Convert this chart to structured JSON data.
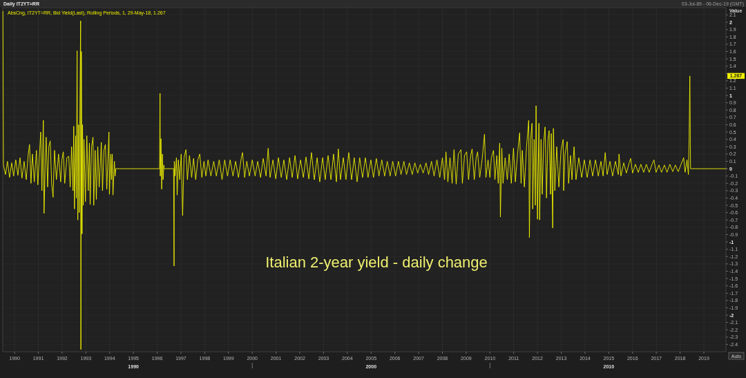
{
  "chart_data": {
    "type": "line",
    "title": "Italian 2-year yield - daily change",
    "subtitle": "Daily IT2YT=RR",
    "ylabel": "Value",
    "annotations": [
      {
        "text": "1.267",
        "y": 1.267
      },
      "03-Jul-89 - 06-Dec-19 (GMT)",
      "Auto"
    ],
    "legend": "top left",
    "grid": true,
    "xlim": [
      1989.503,
      2019.93
    ],
    "ylim": [
      -2.5,
      2.2
    ],
    "xticks": [
      1990,
      1991,
      1992,
      1993,
      1994,
      1995,
      1996,
      1997,
      1998,
      1999,
      2000,
      2001,
      2002,
      2003,
      2004,
      2005,
      2006,
      2007,
      2008,
      2009,
      2010,
      2011,
      2012,
      2013,
      2014,
      2015,
      2016,
      2017,
      2018,
      2019
    ],
    "x2lim": [
      1984.503,
      2014.93
    ],
    "x2ticks": [
      1990,
      {
        "value": 1995,
        "label": null
      },
      2000,
      {
        "value": 2005,
        "label": null
      },
      2010
    ],
    "yticks": [
      -2.4,
      -2.3,
      -2.2,
      -2.1,
      -2,
      -1.9,
      -1.8,
      -1.7,
      -1.6,
      -1.5,
      -1.4,
      -1.3,
      -1.2,
      -1.1,
      -1,
      -0.9,
      -0.8,
      -0.7,
      -0.6,
      -0.5,
      -0.4,
      -0.3,
      -0.2,
      -0.1,
      0,
      0.1,
      0.2,
      0.3,
      0.4,
      0.5,
      0.6,
      0.7,
      0.8,
      0.9,
      1,
      1.1,
      1.2,
      {
        "value": 1.3,
        "label": null
      },
      1.4,
      1.5,
      1.6,
      1.7,
      1.8,
      1.9,
      2,
      2.1
    ],
    "series": [
      {
        "name": "AbsCng, IT2YT=RR, Bid Yield(Last), Rolling Periods, 1, 29-May-18, 1.267",
        "color": "#f0f000",
        "x": [
          1989.51,
          1989.53,
          1989.62,
          1989.7,
          1989.79,
          1989.88,
          1989.96,
          1990.05,
          1990.14,
          1990.23,
          1990.31,
          1990.4,
          1990.49,
          1990.57,
          1990.63,
          1990.69,
          1990.75,
          1990.83,
          1990.92,
          1990.98,
          1991.04,
          1991.1,
          1991.15,
          1991.21,
          1991.24,
          1991.3,
          1991.33,
          1991.39,
          1991.44,
          1991.5,
          1991.56,
          1991.62,
          1991.68,
          1991.76,
          1991.85,
          1991.94,
          1991.99,
          1992.05,
          1992.11,
          1992.2,
          1992.28,
          1992.34,
          1992.4,
          1992.46,
          1992.49,
          1992.52,
          1992.57,
          1992.6,
          1992.63,
          1992.66,
          1992.69,
          1992.72,
          1992.75,
          1992.78,
          1992.79,
          1992.81,
          1992.84,
          1992.86,
          1992.89,
          1992.92,
          1992.98,
          1993.04,
          1993.1,
          1993.15,
          1993.18,
          1993.24,
          1993.3,
          1993.33,
          1993.39,
          1993.44,
          1993.5,
          1993.56,
          1993.65,
          1993.7,
          1993.76,
          1993.82,
          1993.88,
          1993.97,
          1993.99,
          1994.05,
          1994.08,
          1994.11,
          1994.14,
          1994.2,
          1994.23,
          1994.26,
          1996.1,
          1996.12,
          1996.13,
          1996.16,
          1996.19,
          1996.22,
          1996.25,
          1996.28,
          1996.29,
          1996.69,
          1996.71,
          1996.72,
          1996.75,
          1996.81,
          1996.84,
          1996.89,
          1996.95,
          1997.01,
          1997.07,
          1997.13,
          1997.21,
          1997.27,
          1997.36,
          1997.45,
          1997.53,
          1997.62,
          1997.71,
          1997.79,
          1997.88,
          1997.97,
          1998.05,
          1998.14,
          1998.26,
          1998.38,
          1998.49,
          1998.61,
          1998.73,
          1998.84,
          1998.96,
          1999.07,
          1999.19,
          1999.3,
          1999.42,
          1999.54,
          1999.59,
          1999.68,
          1999.77,
          1999.88,
          2000.0,
          2000.12,
          2000.23,
          2000.35,
          2000.46,
          2000.58,
          2000.67,
          2000.75,
          2000.87,
          2000.99,
          2001.1,
          2001.22,
          2001.33,
          2001.45,
          2001.57,
          2001.68,
          2001.8,
          2001.91,
          2002.03,
          2002.15,
          2002.26,
          2002.38,
          2002.49,
          2002.61,
          2002.73,
          2002.84,
          2002.96,
          2003.07,
          2003.19,
          2003.31,
          2003.42,
          2003.54,
          2003.62,
          2003.71,
          2003.83,
          2003.94,
          2004.06,
          2004.18,
          2004.29,
          2004.41,
          2004.52,
          2004.64,
          2004.76,
          2004.87,
          2004.99,
          2005.1,
          2005.22,
          2005.33,
          2005.45,
          2005.57,
          2005.68,
          2005.8,
          2005.91,
          2006.03,
          2006.15,
          2006.26,
          2006.38,
          2006.49,
          2006.61,
          2006.73,
          2006.84,
          2006.96,
          2007.07,
          2007.19,
          2007.31,
          2007.42,
          2007.54,
          2007.65,
          2007.77,
          2007.89,
          2008.0,
          2008.09,
          2008.15,
          2008.23,
          2008.32,
          2008.41,
          2008.49,
          2008.58,
          2008.67,
          2008.78,
          2008.84,
          2008.93,
          2009.02,
          2009.1,
          2009.19,
          2009.25,
          2009.34,
          2009.42,
          2009.48,
          2009.57,
          2009.68,
          2009.77,
          2009.83,
          2009.92,
          2010.0,
          2010.06,
          2010.15,
          2010.21,
          2010.29,
          2010.35,
          2010.41,
          2010.44,
          2010.5,
          2010.55,
          2010.64,
          2010.73,
          2010.81,
          2010.9,
          2010.99,
          2011.07,
          2011.16,
          2011.25,
          2011.31,
          2011.36,
          2011.45,
          2011.54,
          2011.63,
          2011.66,
          2011.71,
          2011.77,
          2011.8,
          2011.86,
          2011.91,
          2011.94,
          2012.0,
          2012.06,
          2012.09,
          2012.15,
          2012.2,
          2012.26,
          2012.32,
          2012.38,
          2012.44,
          2012.49,
          2012.55,
          2012.58,
          2012.64,
          2012.67,
          2012.73,
          2012.81,
          2012.9,
          2012.99,
          2013.08,
          2013.1,
          2013.16,
          2013.25,
          2013.31,
          2013.39,
          2013.45,
          2013.54,
          2013.62,
          2013.74,
          2013.86,
          2013.97,
          2014.09,
          2014.21,
          2014.32,
          2014.44,
          2014.56,
          2014.67,
          2014.76,
          2014.85,
          2014.93,
          2015.05,
          2015.16,
          2015.28,
          2015.4,
          2015.43,
          2015.51,
          2015.63,
          2015.74,
          2015.86,
          2015.92,
          2016.0,
          2016.12,
          2016.24,
          2016.35,
          2016.47,
          2016.58,
          2016.7,
          2016.82,
          2016.9,
          2016.99,
          2017.11,
          2017.22,
          2017.34,
          2017.45,
          2017.57,
          2017.69,
          2017.8,
          2017.92,
          2018.03,
          2018.15,
          2018.21,
          2018.29,
          2018.35,
          2018.38,
          2018.41,
          2018.44,
          2019.93
        ],
        "values": [
          2.15,
          0.05,
          -0.08,
          0.1,
          -0.12,
          0.08,
          -0.1,
          0.12,
          -0.09,
          0.15,
          -0.13,
          0.1,
          -0.15,
          0.18,
          0.33,
          -0.2,
          0.2,
          -0.18,
          0.25,
          -0.22,
          0.15,
          0.5,
          -0.3,
          0.66,
          -0.61,
          0.2,
          0.43,
          -0.25,
          0.3,
          0.38,
          -0.2,
          -0.39,
          0.25,
          -0.15,
          0.2,
          -0.18,
          0.12,
          0.23,
          -0.2,
          0.15,
          0.17,
          -0.25,
          0.3,
          -0.3,
          0.58,
          -0.55,
          0.45,
          -0.4,
          1.61,
          -0.7,
          0.6,
          -0.6,
          0.9,
          2.02,
          -2.47,
          1.6,
          -0.89,
          0.6,
          -0.5,
          0.4,
          -0.45,
          0.45,
          -0.3,
          0.35,
          -0.49,
          0.3,
          0.43,
          -0.5,
          0.25,
          -0.42,
          0.3,
          -0.25,
          0.36,
          -0.3,
          0.25,
          0.33,
          -0.28,
          0.5,
          -0.35,
          0.2,
          -0.15,
          0.2,
          -0.36,
          0.1,
          -0.1,
          0,
          0,
          1.03,
          -0.1,
          0.41,
          -0.28,
          0.2,
          -0.15,
          0.05,
          0,
          0,
          -1.33,
          0.1,
          -0.1,
          0.15,
          -0.36,
          0.12,
          -0.15,
          0.2,
          -0.64,
          0.15,
          0.26,
          -0.15,
          0.18,
          -0.12,
          0.14,
          -0.15,
          0.12,
          0.2,
          -0.12,
          0.1,
          -0.1,
          0.12,
          -0.1,
          0.1,
          -0.1,
          0.12,
          -0.15,
          0.12,
          -0.1,
          0.12,
          -0.1,
          0.1,
          -0.12,
          0.15,
          0.22,
          -0.12,
          0.1,
          -0.1,
          0.12,
          -0.1,
          0.1,
          -0.12,
          0.14,
          -0.1,
          0.28,
          -0.12,
          0.12,
          -0.14,
          0.15,
          -0.12,
          0.12,
          -0.15,
          0.15,
          -0.12,
          0.18,
          -0.14,
          0.12,
          -0.12,
          0.16,
          -0.14,
          0.22,
          -0.15,
          0.15,
          -0.18,
          0.15,
          -0.15,
          0.18,
          -0.15,
          0.2,
          -0.18,
          0.27,
          -0.15,
          0.15,
          -0.15,
          0.22,
          -0.15,
          0.15,
          -0.18,
          0.15,
          -0.12,
          0.15,
          -0.12,
          0.12,
          -0.12,
          0.14,
          -0.1,
          0.12,
          -0.1,
          0.1,
          -0.1,
          0.1,
          -0.1,
          0.1,
          -0.08,
          0.1,
          -0.08,
          0.08,
          -0.08,
          0.08,
          -0.06,
          0.06,
          -0.06,
          0.08,
          -0.08,
          0.1,
          -0.1,
          0.12,
          -0.12,
          0.15,
          -0.15,
          0.23,
          -0.18,
          0.15,
          -0.2,
          0.26,
          -0.21,
          0.2,
          0.26,
          -0.2,
          0.18,
          0.23,
          -0.15,
          0.18,
          0.27,
          -0.15,
          0.15,
          0.23,
          -0.12,
          0.15,
          0.47,
          -0.12,
          0.12,
          -0.12,
          0.15,
          0.25,
          -0.15,
          0.18,
          -0.2,
          0.35,
          -0.66,
          0.28,
          -0.2,
          0.15,
          -0.15,
          0.2,
          -0.2,
          0.28,
          -0.18,
          0.2,
          0.49,
          -0.2,
          0.25,
          -0.25,
          0.3,
          0.66,
          -0.94,
          0.4,
          0.62,
          -0.55,
          0.4,
          -0.5,
          0.86,
          -0.69,
          0.62,
          -0.7,
          0.4,
          -0.35,
          0.35,
          0.57,
          -0.4,
          0.4,
          0.52,
          -0.35,
          0.48,
          -0.81,
          0.55,
          -0.3,
          0.3,
          -0.25,
          0.25,
          0.4,
          -0.3,
          0.2,
          0.37,
          -0.2,
          0.18,
          -0.15,
          0.3,
          -0.15,
          0.15,
          -0.12,
          0.12,
          -0.12,
          0.12,
          -0.1,
          0.12,
          -0.1,
          0.1,
          -0.1,
          0.22,
          -0.08,
          0.1,
          -0.1,
          0.1,
          -0.08,
          0.2,
          -0.1,
          0.08,
          -0.06,
          0.08,
          0.14,
          -0.06,
          0.06,
          -0.05,
          0.06,
          -0.05,
          0.06,
          -0.05,
          0.06,
          0.12,
          -0.05,
          0.05,
          -0.05,
          0.05,
          -0.05,
          0.06,
          -0.04,
          0.05,
          -0.04,
          0.05,
          0.15,
          -0.05,
          0.12,
          -0.08,
          0.42,
          1.267,
          0,
          0
        ]
      }
    ]
  }
}
